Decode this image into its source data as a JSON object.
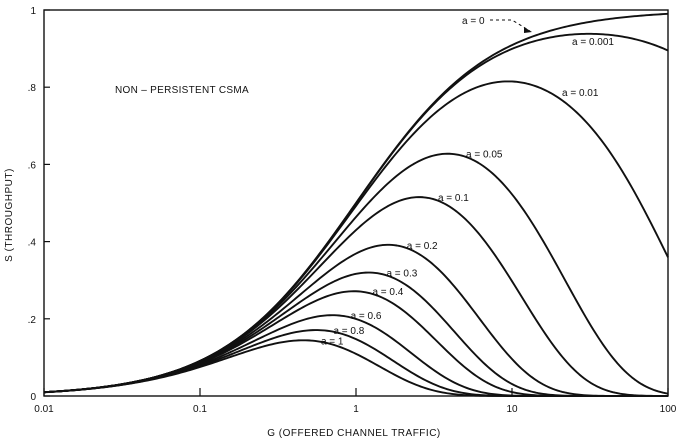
{
  "chart_data": {
    "type": "line",
    "title": "",
    "annotation": "NON – PERSISTENT CSMA",
    "xlabel": "G (OFFERED CHANNEL TRAFFIC)",
    "ylabel": "S (THROUGHPUT)",
    "xscale": "log",
    "xlim": [
      0.01,
      100
    ],
    "ylim": [
      0,
      1
    ],
    "grid": false,
    "legend": "inline curve labels",
    "x_ticks": [
      "0.01",
      "0.1",
      "1",
      "10",
      "100"
    ],
    "x_tick_values": [
      0.01,
      0.1,
      1,
      10,
      100
    ],
    "y_ticks": [
      "0",
      ".2",
      ".4",
      ".6",
      ".8",
      "1"
    ],
    "y_tick_values": [
      0,
      0.2,
      0.4,
      0.6,
      0.8,
      1
    ],
    "x": [
      0.01,
      0.02,
      0.05,
      0.1,
      0.2,
      0.5,
      1,
      2,
      5,
      10,
      20,
      50,
      100
    ],
    "series": [
      {
        "name": "a = 0",
        "a": 0,
        "label": "a = 0",
        "values": [
          0.0099,
          0.0196,
          0.0476,
          0.0909,
          0.1667,
          0.3333,
          0.5,
          0.6667,
          0.8333,
          0.9091,
          0.9524,
          0.9804,
          0.9901
        ]
      },
      {
        "name": "a = 0.001",
        "a": 0.001,
        "label": "a = 0.001",
        "values": [
          0.0099,
          0.0196,
          0.0476,
          0.0909,
          0.1666,
          0.3331,
          0.4993,
          0.665,
          0.8263,
          0.8939,
          0.9205,
          0.9151,
          0.8944
        ]
      },
      {
        "name": "a = 0.01",
        "a": 0.01,
        "label": "a = 0.01",
        "values": [
          0.0099,
          0.0196,
          0.0475,
          0.0906,
          0.1651,
          0.3241,
          0.4791,
          0.6186,
          0.7403,
          0.7692,
          0.737,
          0.5621,
          0.3352
        ]
      },
      {
        "name": "a = 0.05",
        "a": 0.05,
        "label": "a = 0.05",
        "values": [
          0.0098,
          0.0194,
          0.0466,
          0.0883,
          0.1596,
          0.3057,
          0.4398,
          0.5454,
          0.619,
          0.5896,
          0.4402,
          0.1081,
          0.0074
        ]
      },
      {
        "name": "a = 0.1",
        "a": 0.1,
        "label": "a = 0.1",
        "values": [
          0.0098,
          0.0192,
          0.0455,
          0.0858,
          0.1526,
          0.2884,
          0.4092,
          0.499,
          0.5195,
          0.4323,
          0.2222,
          0.0122,
          0.0001
        ]
      },
      {
        "name": "a = 0.2",
        "a": 0.2,
        "label": "a = 0.2",
        "values": [
          0.0097,
          0.0189,
          0.0443,
          0.0821,
          0.1431,
          0.2647,
          0.3665,
          0.429,
          0.3919,
          0.2382,
          0.0611,
          0.0004,
          0.0
        ]
      },
      {
        "name": "a = 0.3",
        "a": 0.3,
        "label": "a = 0.3",
        "values": [
          0.0096,
          0.0186,
          0.0431,
          0.079,
          0.1353,
          0.243,
          0.3252,
          0.3631,
          0.2844,
          0.1223,
          0.0186,
          0.0,
          0.0
        ]
      },
      {
        "name": "a = 0.4",
        "a": 0.4,
        "label": "a = 0.4",
        "values": [
          0.0095,
          0.0184,
          0.0419,
          0.0758,
          0.1272,
          0.2204,
          0.2889,
          0.3067,
          0.2022,
          0.0637,
          0.0053,
          0.0,
          0.0
        ]
      },
      {
        "name": "a = 0.6",
        "a": 0.6,
        "label": "a = 0.6",
        "values": [
          0.0094,
          0.0178,
          0.0396,
          0.0696,
          0.1122,
          0.1815,
          0.2235,
          0.2088,
          0.0953,
          0.0163,
          0.0004,
          0.0,
          0.0
        ]
      },
      {
        "name": "a = 0.8",
        "a": 0.8,
        "label": "a = 0.8",
        "values": [
          0.0093,
          0.0173,
          0.0374,
          0.064,
          0.099,
          0.1488,
          0.1717,
          0.1408,
          0.0448,
          0.0042,
          0.0,
          0.0,
          0.0
        ]
      },
      {
        "name": "a = 1",
        "a": 1,
        "label": "a = 1",
        "values": [
          0.0091,
          0.0168,
          0.0353,
          0.0588,
          0.0869,
          0.1212,
          0.1317,
          0.0949,
          0.0212,
          0.0011,
          0.0,
          0.0,
          0.0
        ]
      }
    ]
  }
}
